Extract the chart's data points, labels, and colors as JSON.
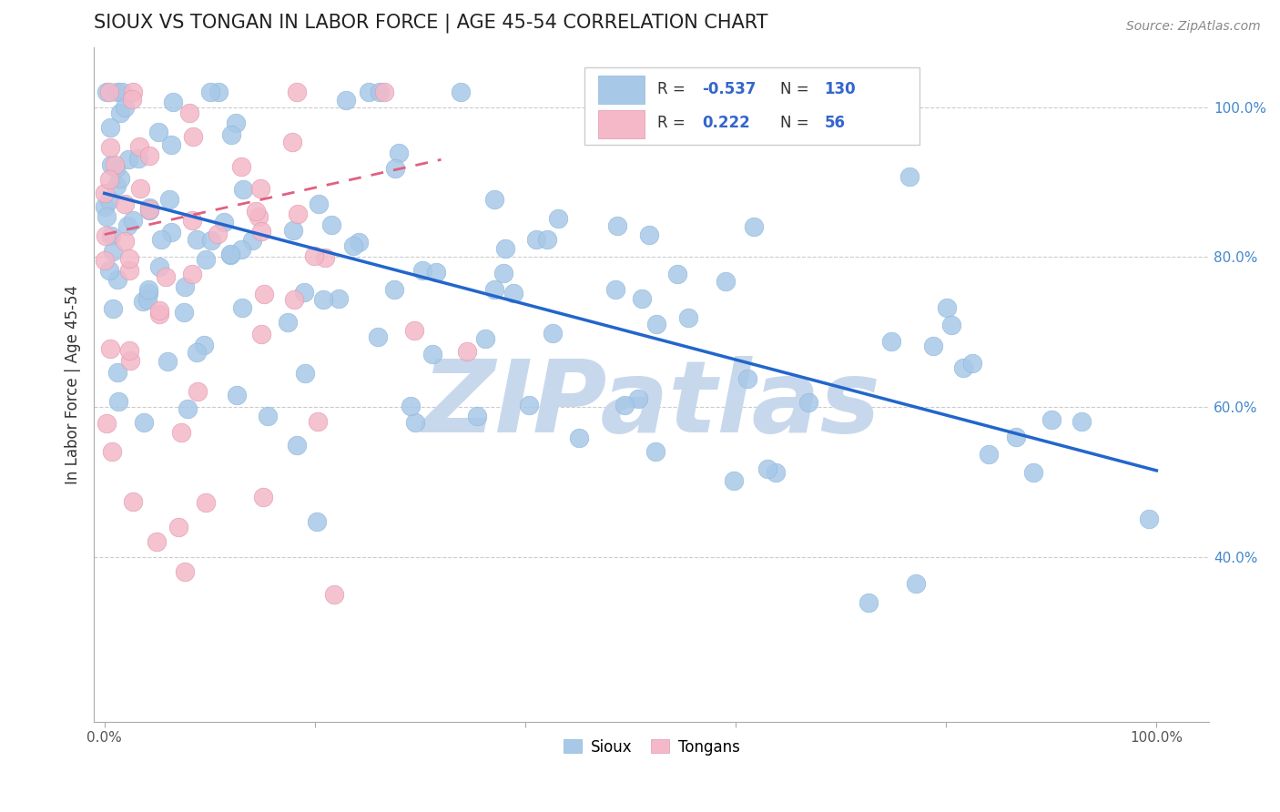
{
  "title": "SIOUX VS TONGAN IN LABOR FORCE | AGE 45-54 CORRELATION CHART",
  "source_text": "Source: ZipAtlas.com",
  "ylabel": "In Labor Force | Age 45-54",
  "x_ticks": [
    0.0,
    0.2,
    0.4,
    0.6,
    0.8,
    1.0
  ],
  "x_tick_labels": [
    "0.0%",
    "",
    "",
    "",
    "",
    "100.0%"
  ],
  "y_ticks": [
    0.4,
    0.6,
    0.8,
    1.0
  ],
  "y_tick_labels": [
    "40.0%",
    "60.0%",
    "80.0%",
    "100.0%"
  ],
  "x_range": [
    -0.01,
    1.05
  ],
  "y_range": [
    0.18,
    1.08
  ],
  "blue_color": "#A8C8E8",
  "pink_color": "#F4B8C8",
  "trend_blue_color": "#2266CC",
  "trend_pink_color": "#E06080",
  "watermark": "ZIPatlas",
  "watermark_color": "#C8D8EC",
  "grid_color": "#CCCCCC",
  "background_color": "#FFFFFF",
  "blue_trend_x0": 0.0,
  "blue_trend_y0": 0.885,
  "blue_trend_x1": 1.0,
  "blue_trend_y1": 0.515,
  "pink_trend_x0": 0.0,
  "pink_trend_y0": 0.83,
  "pink_trend_x1": 0.32,
  "pink_trend_y1": 0.93
}
